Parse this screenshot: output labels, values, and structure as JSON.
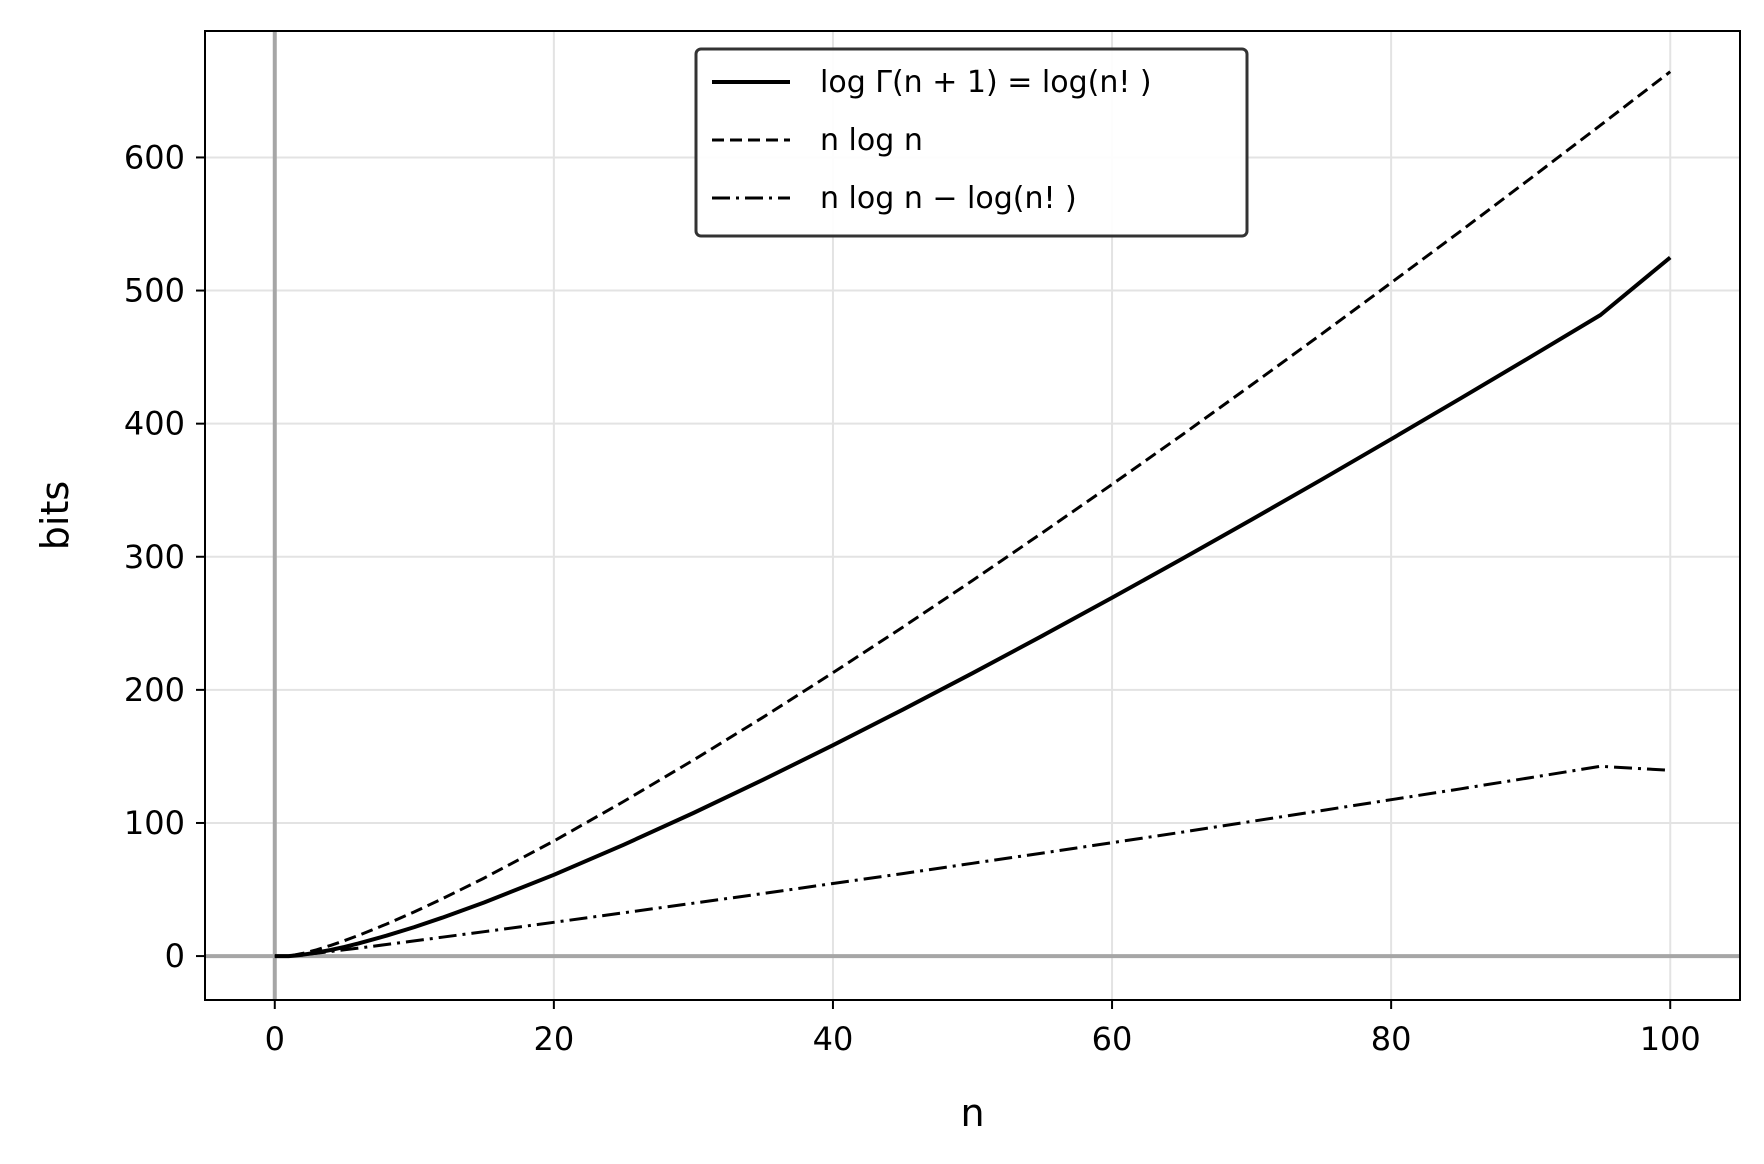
{
  "chart_data": {
    "type": "line",
    "title": "",
    "xlabel": "n",
    "ylabel": "bits",
    "xlim": [
      -5,
      105
    ],
    "ylim": [
      -33,
      695
    ],
    "x_ticks": [
      0,
      20,
      40,
      60,
      80,
      100
    ],
    "x_tick_labels": [
      "0",
      "20",
      "40",
      "60",
      "80",
      "100"
    ],
    "y_ticks": [
      0,
      100,
      200,
      300,
      400,
      500,
      600
    ],
    "y_tick_labels": [
      "0",
      "100",
      "200",
      "300",
      "400",
      "500",
      "600"
    ],
    "grid": true,
    "reference_lines": {
      "x": 0,
      "y": 0
    },
    "legend": {
      "placement": "top-center",
      "entries": [
        {
          "style": "solid",
          "label": "log Γ(n + 1)  =  log(n! )"
        },
        {
          "style": "dashed",
          "label": "n log n"
        },
        {
          "style": "dashdot",
          "label": "n log n − log(n! )"
        }
      ]
    },
    "x": [
      0,
      1,
      2,
      3,
      4,
      5,
      6,
      8,
      10,
      12,
      15,
      20,
      25,
      30,
      35,
      40,
      45,
      50,
      55,
      60,
      65,
      70,
      75,
      80,
      85,
      90,
      95,
      100
    ],
    "series": [
      {
        "name": "log Γ(n + 1)  =  log(n! )",
        "style": "solid",
        "values": [
          0,
          0,
          1.0,
          2.58,
          4.58,
          6.91,
          9.49,
          15.3,
          21.79,
          28.84,
          40.25,
          61.08,
          83.6,
          107.5,
          132.5,
          158.4,
          185.1,
          212.5,
          240.6,
          269.2,
          298.3,
          327.9,
          357.9,
          388.3,
          419.1,
          450.2,
          481.6,
          524.8
        ]
      },
      {
        "name": "n log n",
        "style": "dashed",
        "values": [
          0,
          0,
          2.0,
          4.75,
          8.0,
          11.61,
          15.51,
          24.0,
          33.22,
          43.02,
          58.6,
          86.44,
          116.1,
          147.2,
          179.5,
          212.9,
          247.1,
          282.2,
          318.0,
          354.4,
          391.4,
          429.1,
          467.2,
          505.8,
          544.8,
          584.3,
          624.2,
          664.4
        ]
      },
      {
        "name": "n log n − log(n! )",
        "style": "dashdot",
        "values": [
          0,
          0,
          1.0,
          2.17,
          3.42,
          4.7,
          6.02,
          8.7,
          11.43,
          14.18,
          18.35,
          25.36,
          32.5,
          39.7,
          47.0,
          54.5,
          62.0,
          69.7,
          77.4,
          85.2,
          93.1,
          101.2,
          109.3,
          117.5,
          125.7,
          134.1,
          142.6,
          139.6
        ]
      }
    ]
  }
}
